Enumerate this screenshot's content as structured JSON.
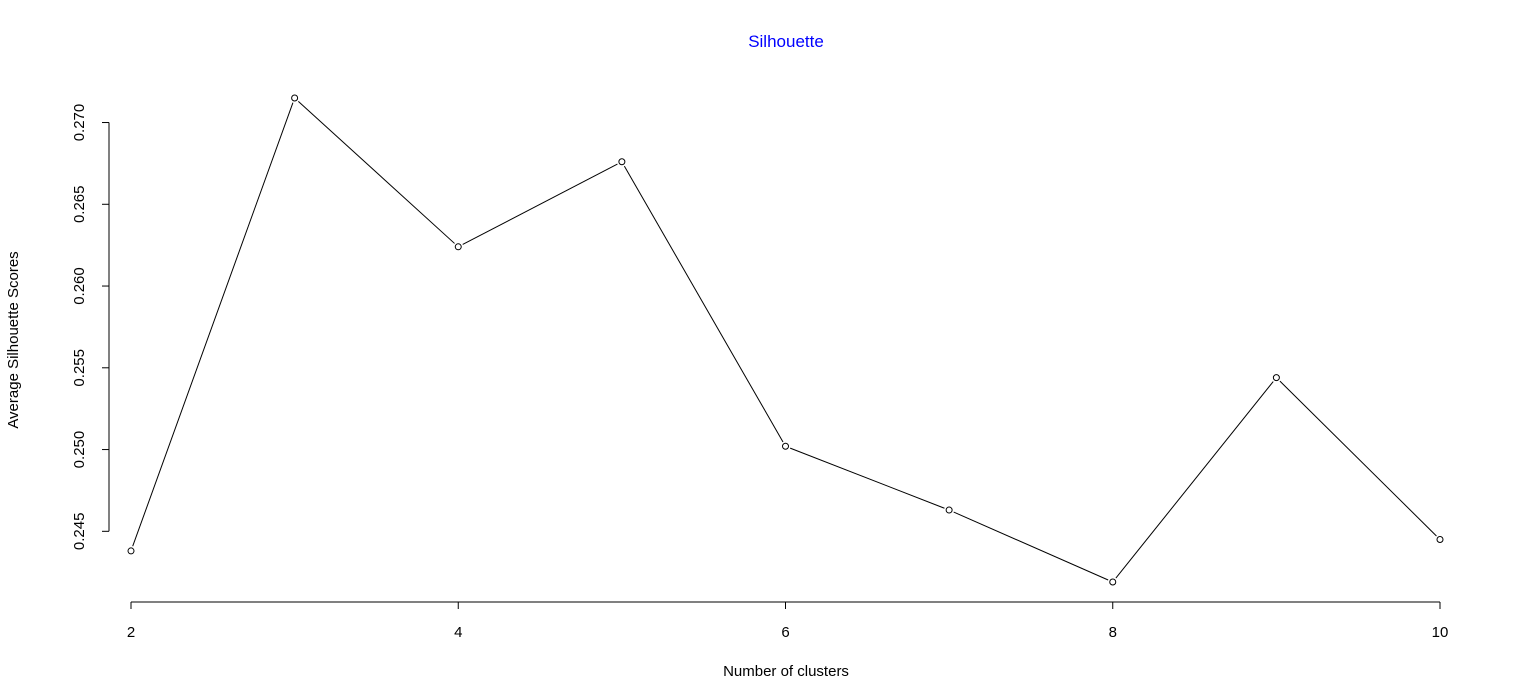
{
  "chart_data": {
    "type": "line",
    "title": "Silhouette",
    "title_color": "#0000FF",
    "xlabel": "Number of clusters",
    "ylabel": "Average Silhouette Scores",
    "x": [
      2,
      3,
      4,
      5,
      6,
      7,
      8,
      9,
      10
    ],
    "series": [
      {
        "values": [
          0.2438,
          0.2715,
          0.2624,
          0.2676,
          0.2502,
          0.2463,
          0.2419,
          0.2544,
          0.2445
        ],
        "color": "#000000",
        "marker": "open-circle"
      }
    ],
    "xlim": [
      2,
      10
    ],
    "ylim": [
      0.2419,
      0.2715
    ],
    "x_ticks": [
      2,
      4,
      6,
      8,
      10
    ],
    "x_tick_labels": [
      "2",
      "4",
      "6",
      "8",
      "10"
    ],
    "y_ticks": [
      0.245,
      0.25,
      0.255,
      0.26,
      0.265,
      0.27
    ],
    "y_tick_labels": [
      "0.245",
      "0.250",
      "0.255",
      "0.260",
      "0.265",
      "0.270"
    ],
    "grid": false,
    "legend": "none"
  }
}
